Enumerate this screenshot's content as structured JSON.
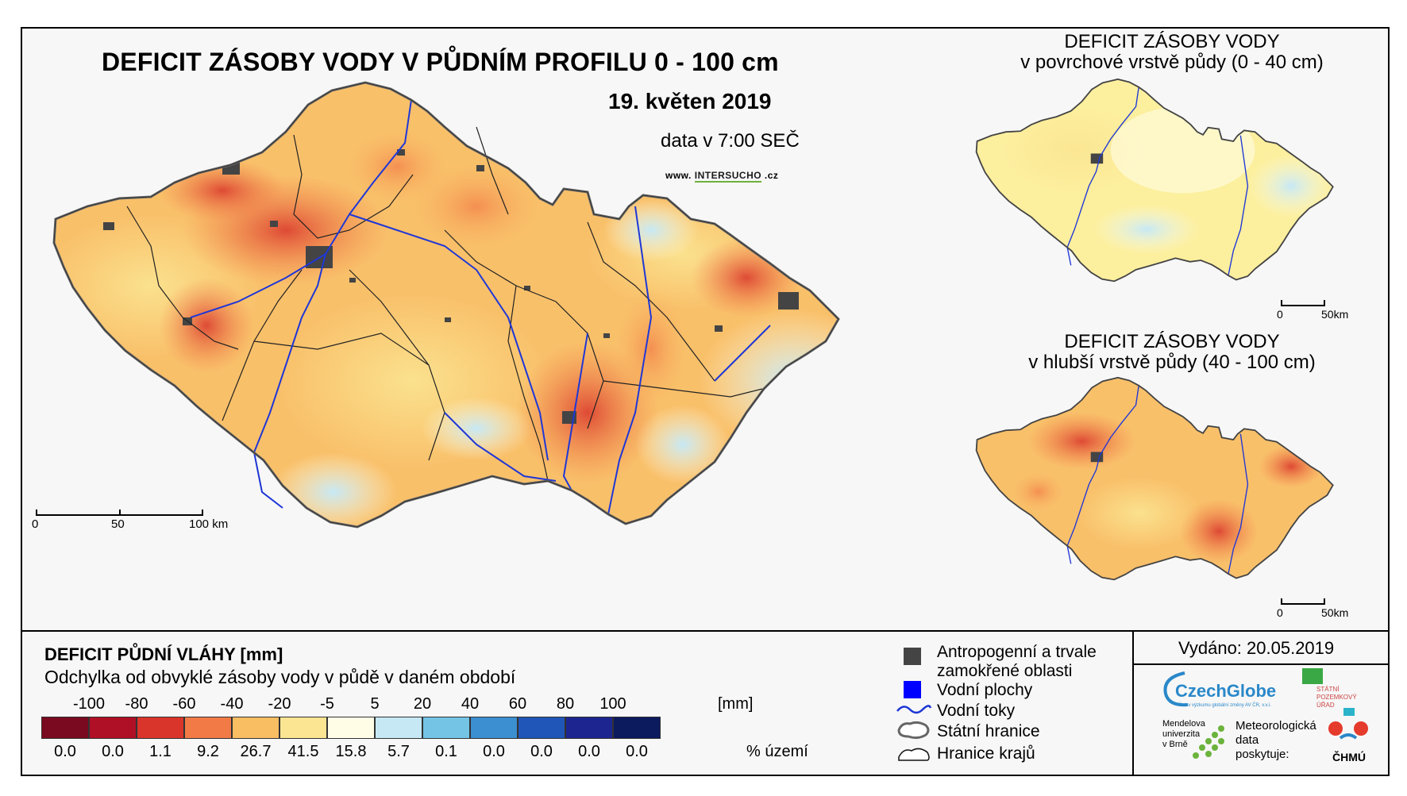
{
  "main": {
    "title": "DEFICIT ZÁSOBY VODY V PŮDNÍM PROFILU 0 - 100 cm",
    "date": "19. květen 2019",
    "time": "data v 7:00 SEČ",
    "website": {
      "prefix": "www. ",
      "middle": "INTERSUCHO",
      "suffix": " .cz"
    },
    "scalebar": {
      "labels": [
        "0",
        "50",
        "100 km"
      ]
    }
  },
  "mini_maps": [
    {
      "title_line1": "DEFICIT ZÁSOBY VODY",
      "title_line2": "v povrchové vrstvě půdy (0 - 40 cm)",
      "scalebar": [
        "0",
        "50km"
      ]
    },
    {
      "title_line1": "DEFICIT ZÁSOBY VODY",
      "title_line2": "v hlubší vrstvě půdy (40 - 100 cm)",
      "scalebar": [
        "0",
        "50km"
      ]
    }
  ],
  "legend": {
    "title": "DEFICIT PŮDNÍ VLÁHY [mm]",
    "subtitle": "Odchylka od obvyklé zásoby vody v půdě v daném období",
    "scale_values": [
      "-100",
      "-80",
      "-60",
      "-40",
      "-20",
      "-5",
      "5",
      "20",
      "40",
      "60",
      "80",
      "100"
    ],
    "unit_mm": "[mm]",
    "colors": [
      "#7a0a1f",
      "#b01025",
      "#d9352b",
      "#f27a47",
      "#f9bd62",
      "#fbe592",
      "#fffde6",
      "#c6e8f5",
      "#74c4e6",
      "#3c8fd0",
      "#1f56b8",
      "#1c2590",
      "#0c1a5e"
    ],
    "percentages": [
      "0.0",
      "0.0",
      "1.1",
      "9.2",
      "26.7",
      "41.5",
      "15.8",
      "5.7",
      "0.1",
      "0.0",
      "0.0",
      "0.0",
      "0.0"
    ],
    "unit_pct": "% území",
    "symbols": [
      {
        "label_line1": "Antropogenní a trvale",
        "label_line2": "zamokřené oblasti",
        "icon": "dark-square"
      },
      {
        "label_line1": "Vodní plochy",
        "label_line2": "",
        "icon": "blue-square"
      },
      {
        "label_line1": "Vodní toky",
        "label_line2": "",
        "icon": "blue-wave"
      },
      {
        "label_line1": "Státní hranice",
        "label_line2": "",
        "icon": "gray-outline"
      },
      {
        "label_line1": "Hranice krajů",
        "label_line2": "",
        "icon": "black-outline"
      }
    ]
  },
  "issued": "Vydáno: 20.05.2019",
  "logos": {
    "czechglobe": "CzechGlobe",
    "czechglobe_sub": "Ústav výzkumu globální změny AV ČR, v.v.i.",
    "spu_line1": "STÁTNÍ",
    "spu_line2": "POZEMKOVÝ",
    "spu_line3": "ÚŘAD",
    "mendel_line1": "Mendelova",
    "mendel_line2": "univerzita",
    "mendel_line3": "v Brně",
    "meteo_line1": "Meteorologická",
    "meteo_line2": "data",
    "meteo_line3": "poskytuje:",
    "chmu": "ČHMÚ"
  }
}
